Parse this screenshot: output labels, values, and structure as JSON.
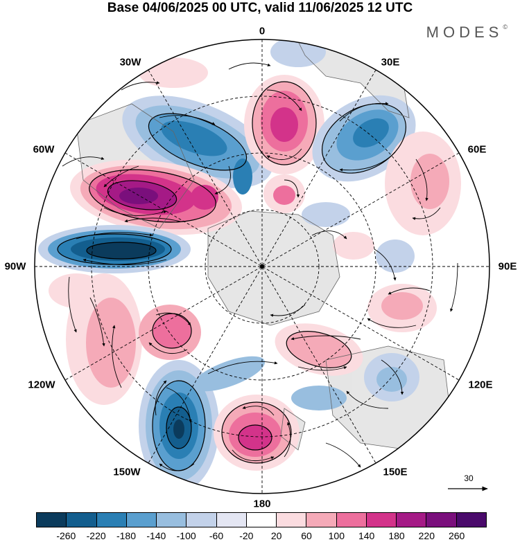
{
  "title": "Base 04/06/2025 00 UTC, valid 11/06/2025 12 UTC",
  "brand": "MODES",
  "brand_mark": "©",
  "longitude_labels": {
    "top": "0",
    "top_right": "30E",
    "right_upper": "60E",
    "right": "90E",
    "right_lower": "120E",
    "bottom_right": "150E",
    "bottom": "180",
    "bottom_left": "150W",
    "left_lower": "120W",
    "left": "90W",
    "left_upper": "60W",
    "top_left": "30W"
  },
  "reference_vector": "30",
  "colorbar": {
    "labels": [
      "-260",
      "-220",
      "-180",
      "-140",
      "-100",
      "-60",
      "-20",
      "20",
      "60",
      "100",
      "140",
      "180",
      "220",
      "260"
    ],
    "colors": [
      "#0b3b5c",
      "#135e8e",
      "#2a7fb4",
      "#5a9fcf",
      "#98bedf",
      "#c3d2ea",
      "#e4e6f3",
      "#ffffff",
      "#fbdce0",
      "#f5aab8",
      "#ed6f9d",
      "#d3338a",
      "#a51a86",
      "#7a0f7c",
      "#4a0a6b"
    ]
  },
  "anomaly_cells": [
    {
      "name": "cell-south-atlantic-low",
      "value": -180
    },
    {
      "name": "cell-0-high",
      "value": 170
    },
    {
      "name": "cell-30e-low",
      "value": -170
    },
    {
      "name": "cell-60e-high",
      "value": 90
    },
    {
      "name": "cell-60w-high",
      "value": 240
    },
    {
      "name": "cell-90w-low",
      "value": -260
    },
    {
      "name": "cell-120w-high",
      "value": 110
    },
    {
      "name": "cell-140w-high",
      "value": 140
    },
    {
      "name": "cell-150w-low",
      "value": -250
    },
    {
      "name": "cell-180-high",
      "value": 200
    },
    {
      "name": "cell-120e-low",
      "value": -90
    },
    {
      "name": "cell-140e-high",
      "value": 120
    },
    {
      "name": "cell-100e-high",
      "value": 110
    },
    {
      "name": "cell-center-high",
      "value": 130
    }
  ]
}
